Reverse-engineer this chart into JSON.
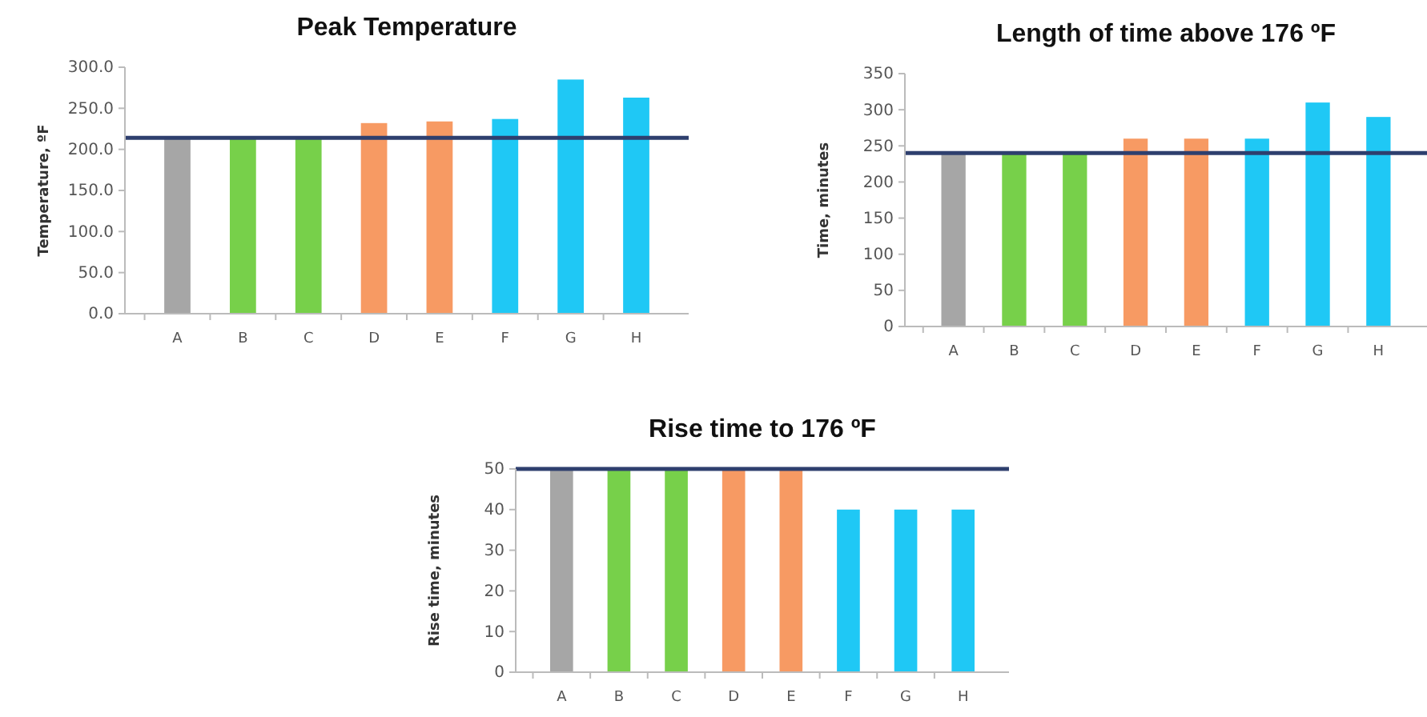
{
  "chart_data": [
    {
      "type": "bar",
      "title": "Peak Temperature",
      "ylabel": "Temperature, ºF",
      "categories": [
        "A",
        "B",
        "C",
        "D",
        "E",
        "F",
        "G",
        "H"
      ],
      "values": [
        214,
        214,
        214,
        232,
        234,
        237,
        285,
        263
      ],
      "colors": [
        "#a6a6a6",
        "#77d04a",
        "#77d04a",
        "#f79a63",
        "#f79a63",
        "#1fc8f5",
        "#1fc8f5",
        "#1fc8f5"
      ],
      "ylim": [
        0,
        300
      ],
      "yticks": [
        {
          "value": 0,
          "label": "0.0"
        },
        {
          "value": 50,
          "label": "50.0"
        },
        {
          "value": 100,
          "label": "100.0"
        },
        {
          "value": 150,
          "label": "150.0"
        },
        {
          "value": 200,
          "label": "200.0"
        },
        {
          "value": 250,
          "label": "250.0"
        },
        {
          "value": 300,
          "label": "300.0"
        }
      ],
      "ref_lines": [
        {
          "axis": "y",
          "value": 214,
          "color": "#2e3f6e"
        }
      ]
    },
    {
      "type": "bar",
      "title": "Length of time above 176 ºF",
      "ylabel": "Time, minutes",
      "categories": [
        "A",
        "B",
        "C",
        "D",
        "E",
        "F",
        "G",
        "H"
      ],
      "values": [
        240,
        240,
        240,
        260,
        260,
        260,
        310,
        290
      ],
      "colors": [
        "#a6a6a6",
        "#77d04a",
        "#77d04a",
        "#f79a63",
        "#f79a63",
        "#1fc8f5",
        "#1fc8f5",
        "#1fc8f5"
      ],
      "ylim": [
        0,
        350
      ],
      "yticks": [
        0,
        50,
        100,
        150,
        200,
        250,
        300,
        350
      ],
      "ref_lines": [
        {
          "axis": "y",
          "value": 240,
          "color": "#2e3f6e"
        }
      ]
    },
    {
      "type": "bar",
      "title": "Rise time to 176 ºF",
      "ylabel": "Rise time, minutes",
      "categories": [
        "A",
        "B",
        "C",
        "D",
        "E",
        "F",
        "G",
        "H"
      ],
      "values": [
        50,
        50,
        50,
        50,
        50,
        40,
        40,
        40
      ],
      "colors": [
        "#a6a6a6",
        "#77d04a",
        "#77d04a",
        "#f79a63",
        "#f79a63",
        "#1fc8f5",
        "#1fc8f5",
        "#1fc8f5"
      ],
      "ylim": [
        0,
        50
      ],
      "yticks": [
        0,
        10,
        20,
        30,
        40,
        50
      ],
      "ref_lines": [
        {
          "axis": "y",
          "value": 50,
          "color": "#2e3f6e"
        }
      ]
    }
  ]
}
